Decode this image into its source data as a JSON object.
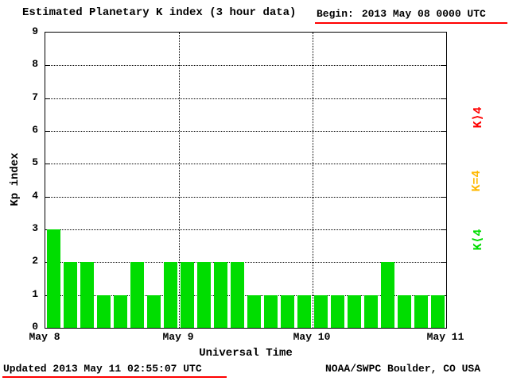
{
  "header": {
    "title": "Estimated Planetary K index (3 hour data)",
    "begin_label": "Begin:",
    "begin_value": "2013 May 08 0000 UTC"
  },
  "footer": {
    "updated": "Updated 2013 May 11 02:55:07 UTC",
    "source": "NOAA/SWPC Boulder, CO USA"
  },
  "legend": [
    {
      "label": "K⟩4",
      "color": "#ff0000",
      "name": "legend-k-gt-4"
    },
    {
      "label": "K=4",
      "color": "#ffb800",
      "name": "legend-k-eq-4"
    },
    {
      "label": "K⟨4",
      "color": "#00dd00",
      "name": "legend-k-lt-4"
    }
  ],
  "chart_data": {
    "type": "bar",
    "title": "Estimated Planetary K index (3 hour data)",
    "xlabel": "Universal Time",
    "ylabel": "Kp index",
    "ylim": [
      0,
      9
    ],
    "y_ticks": [
      0,
      1,
      2,
      3,
      4,
      5,
      6,
      7,
      8,
      9
    ],
    "x_ticks": [
      "May 8",
      "May 9",
      "May 10",
      "May 11"
    ],
    "interval_hours": 3,
    "bars_per_day": 8,
    "bar_color": "#00dd00",
    "grid": true,
    "legend_position": "right",
    "series": [
      {
        "name": "Kp",
        "days": [
          {
            "date": "May 8",
            "values": [
              3,
              2,
              2,
              1,
              1,
              2,
              1,
              2
            ]
          },
          {
            "date": "May 9",
            "values": [
              2,
              2,
              2,
              2,
              1,
              1,
              1,
              1
            ]
          },
          {
            "date": "May 10",
            "values": [
              1,
              1,
              1,
              1,
              2,
              1,
              1,
              1
            ]
          }
        ],
        "values": [
          3,
          2,
          2,
          1,
          1,
          2,
          1,
          2,
          2,
          2,
          2,
          2,
          1,
          1,
          1,
          1,
          1,
          1,
          1,
          1,
          2,
          1,
          1,
          1
        ]
      }
    ]
  }
}
